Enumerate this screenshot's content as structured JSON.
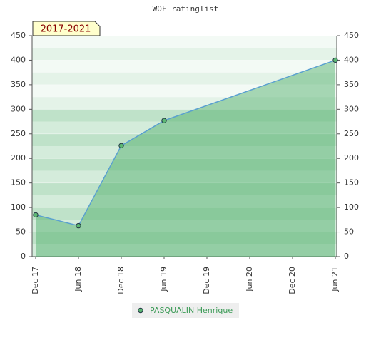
{
  "chart_data": {
    "type": "area",
    "title": "WOF ratinglist",
    "badge": "2017-2021",
    "categories": [
      "Dec 17",
      "Jun 18",
      "Dec 18",
      "Jun 19",
      "Dec 19",
      "Jun 20",
      "Dec 20",
      "Jun 21"
    ],
    "series": [
      {
        "name": "PASQUALIN Henrique",
        "color": "#5aa0d0",
        "x": [
          "Dec 17",
          "Jun 18",
          "Dec 18",
          "Jun 19",
          "Jun 21"
        ],
        "values": [
          85,
          63,
          226,
          277,
          400
        ]
      }
    ],
    "ylim": [
      0,
      450
    ],
    "yticks": [
      0,
      50,
      100,
      150,
      200,
      250,
      300,
      350,
      400,
      450
    ],
    "grid": true
  }
}
